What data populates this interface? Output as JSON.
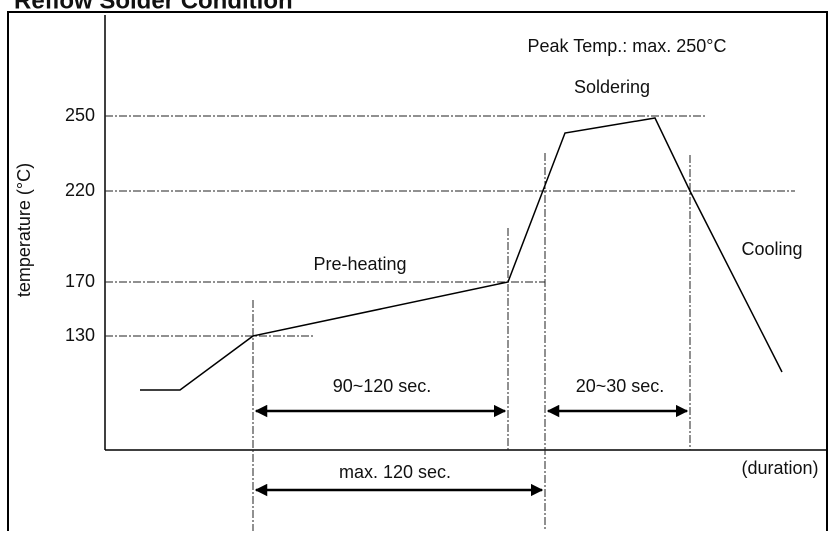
{
  "title": "Reflow Solder Condition",
  "axis": {
    "y_label": "temperature (°C)",
    "x_label": "(duration)",
    "ticks": [
      "250",
      "220",
      "170",
      "130"
    ]
  },
  "annotations": {
    "peak": "Peak Temp.: max. 250°C",
    "soldering": "Soldering",
    "preheating": "Pre-heating",
    "cooling": "Cooling"
  },
  "spans": {
    "preheat": "90~120 sec.",
    "solder": "20~30 sec.",
    "total": "max. 120 sec."
  }
}
